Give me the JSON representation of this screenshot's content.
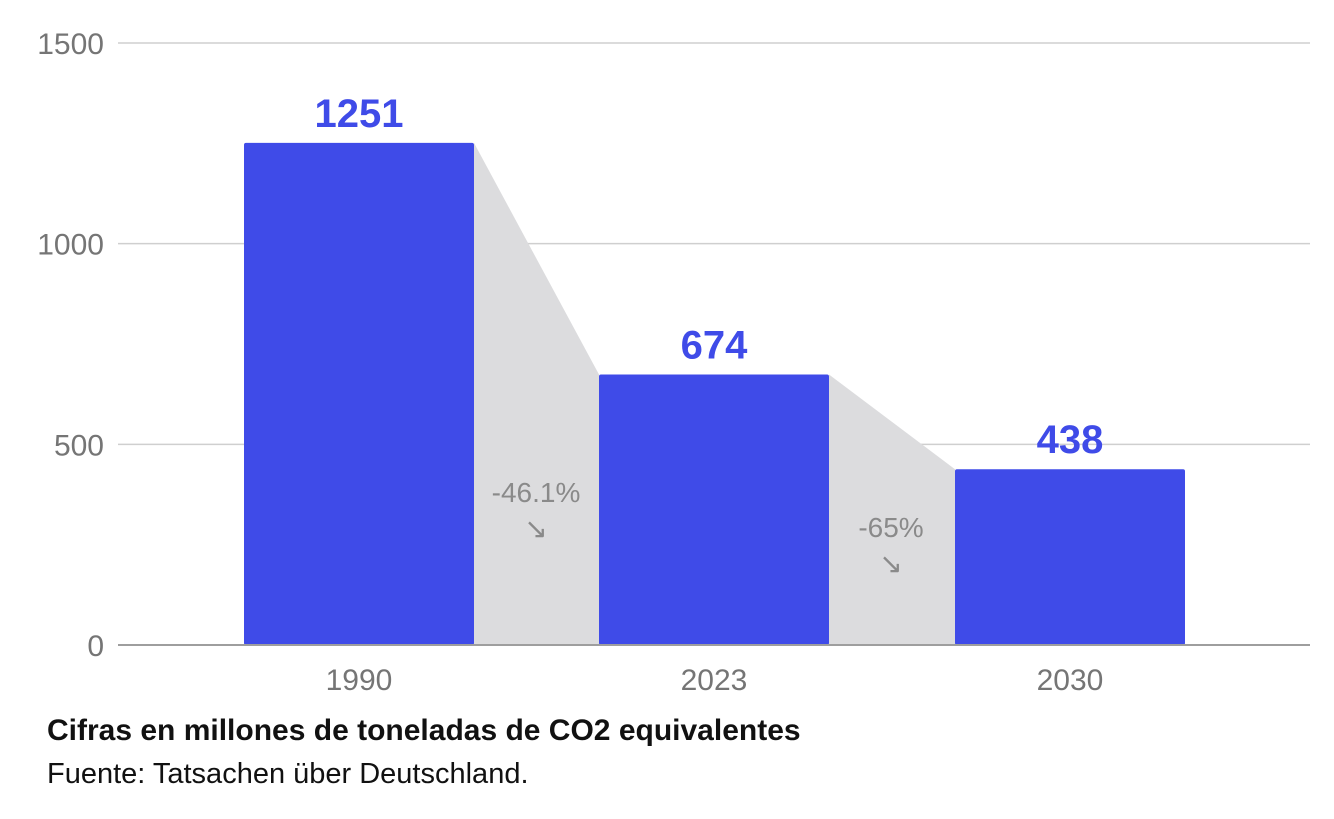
{
  "chart_data": {
    "type": "bar",
    "categories": [
      "1990",
      "2023",
      "2030"
    ],
    "values": [
      1251,
      674,
      438
    ],
    "data_labels": [
      "1251",
      "674",
      "438"
    ],
    "ylim": [
      0,
      1500
    ],
    "yticks": [
      0,
      500,
      1000,
      1500
    ],
    "ytick_labels": [
      "0",
      "500",
      "1000",
      "1500"
    ],
    "grid": true,
    "changes": [
      {
        "from": "1990",
        "to": "2023",
        "label": "-46.1%",
        "arrow": "↘"
      },
      {
        "from": "2023",
        "to": "2030",
        "label": "-65%",
        "arrow": "↘"
      }
    ],
    "colors": {
      "bar": "#3f4be8",
      "data_label": "#3f4be8",
      "connector": "#dcdcde",
      "grid": "#cfcfcf",
      "axis": "#9e9e9e"
    }
  },
  "footer": {
    "caption": "Cifras en millones de toneladas de CO2 equivalentes",
    "source": "Fuente: Tatsachen über Deutschland."
  }
}
